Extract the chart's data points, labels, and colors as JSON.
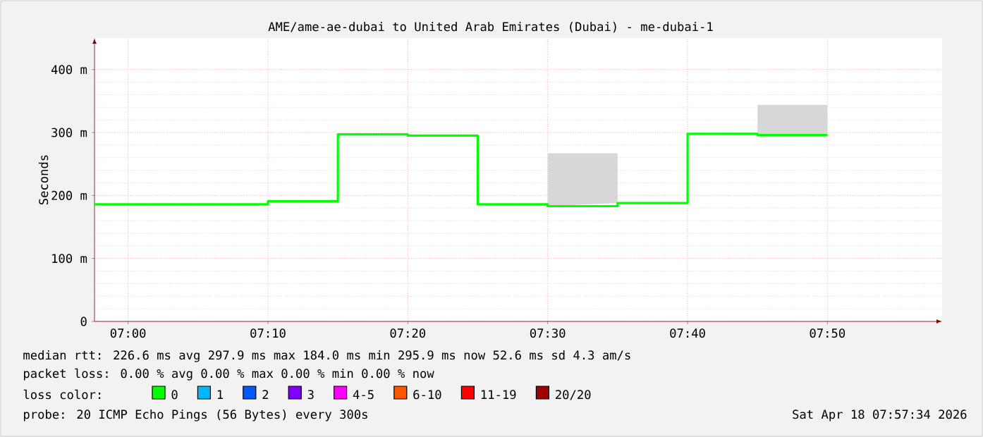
{
  "chart_data": {
    "type": "step",
    "title": "AME/ame-ae-dubai to United Arab Emirates (Dubai) - me-dubai-1",
    "ylabel": "Seconds",
    "x": [
      6.96,
      7.1667,
      7.25,
      7.3333,
      7.4167,
      7.5,
      7.5833,
      7.6667,
      7.75,
      7.8333
    ],
    "series": [
      {
        "name": "0",
        "color": "#00ff00",
        "values": [
          186,
          191,
          297,
          295,
          186,
          183,
          188,
          298,
          296,
          296
        ],
        "lower": [
          null,
          null,
          null,
          null,
          null,
          183,
          188,
          null,
          296,
          296
        ],
        "upper": [
          null,
          null,
          null,
          null,
          null,
          267,
          267,
          null,
          344,
          344
        ]
      },
      {
        "name": "1",
        "color": "#00b8ff",
        "values": [
          null,
          null,
          null,
          null,
          null,
          null,
          null,
          null,
          null,
          null
        ]
      },
      {
        "name": "2",
        "color": "#0059ff",
        "values": [
          null,
          null,
          null,
          null,
          null,
          null,
          null,
          null,
          null,
          null
        ]
      },
      {
        "name": "3",
        "color": "#7e00ff",
        "values": [
          null,
          null,
          null,
          null,
          null,
          null,
          null,
          null,
          null,
          null
        ]
      },
      {
        "name": "4-5",
        "color": "#ff00ff",
        "values": [
          null,
          null,
          null,
          null,
          null,
          null,
          null,
          null,
          null,
          null
        ]
      },
      {
        "name": "6-10",
        "color": "#ff5500",
        "values": [
          null,
          null,
          null,
          null,
          null,
          null,
          null,
          null,
          null,
          null
        ]
      },
      {
        "name": "11-19",
        "color": "#ff0000",
        "values": [
          null,
          null,
          null,
          null,
          null,
          null,
          null,
          null,
          null,
          null
        ]
      },
      {
        "name": "20/20",
        "color": "#a10000",
        "values": [
          null,
          null,
          null,
          null,
          null,
          null,
          null,
          null,
          null,
          null
        ]
      }
    ],
    "legend": "bottom",
    "legend_title": "loss color:",
    "xlim": [
      6.96,
      7.97
    ],
    "ylim": [
      0,
      450
    ],
    "xticks": [
      {
        "value": 7.0,
        "label": "07:00"
      },
      {
        "value": 7.1667,
        "label": "07:10"
      },
      {
        "value": 7.3333,
        "label": "07:20"
      },
      {
        "value": 7.5,
        "label": "07:30"
      },
      {
        "value": 7.6667,
        "label": "07:40"
      },
      {
        "value": 7.8333,
        "label": "07:50"
      }
    ],
    "yticks": [
      {
        "value": 0,
        "label": "0"
      },
      {
        "value": 100,
        "label": "100 m"
      },
      {
        "value": 200,
        "label": "200 m"
      },
      {
        "value": 300,
        "label": "300 m"
      },
      {
        "value": 400,
        "label": "400 m"
      }
    ],
    "grid": true,
    "marker": "none",
    "line_style": "solid",
    "annotations": [
      "median rtt:  226.6 ms avg  297.9 ms max  184.0 ms min  295.9 ms now  52.6 ms sd  4.3   am/s",
      "packet loss: 0.00 % avg  0.00 % max  0.00 % min  0.00 % now",
      "probe:       20 ICMP Echo Pings (56 Bytes) every 300s",
      "Sat Apr 18 07:57:34 2026"
    ]
  }
}
